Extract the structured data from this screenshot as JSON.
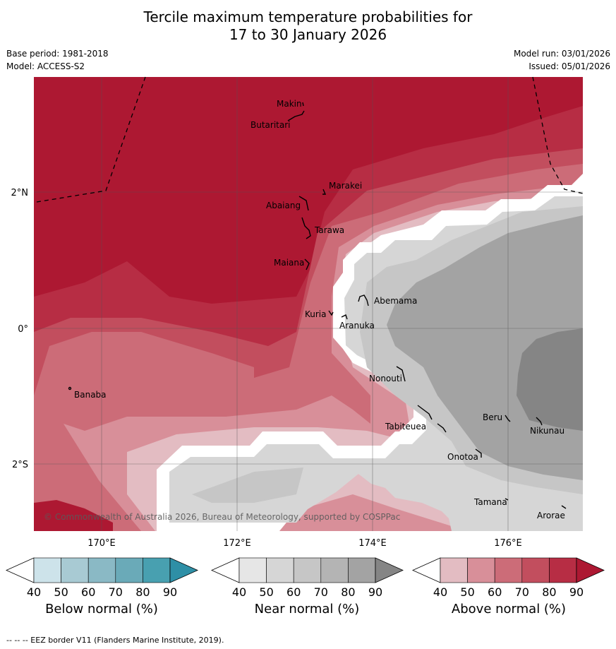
{
  "header": {
    "title_line1": "Tercile maximum temperature probabilities for",
    "title_line2": "17 to 30 January 2026",
    "base_period": "Base period: 1981-2018",
    "model": "Model: ACCESS-S2",
    "model_run": "Model run: 03/01/2026",
    "issued": "Issued: 05/01/2026"
  },
  "map": {
    "lat_labels": [
      "2°N",
      "0°",
      "2°S"
    ],
    "lon_labels": [
      "170°E",
      "172°E",
      "174°E",
      "176°E"
    ],
    "copyright": "© Commonwealth of Australia 2026, Bureau of Meteorology, supported by COSPPac",
    "islands": [
      "Makin",
      "Butaritari",
      "Marakei",
      "Abaiang",
      "Tarawa",
      "Maiana",
      "Abemama",
      "Kuria",
      "Aranuka",
      "Nonouti",
      "Banaba",
      "Tabiteuea",
      "Beru",
      "Nikunau",
      "Onotoa",
      "Tamana",
      "Arorae"
    ]
  },
  "colorbars": [
    {
      "title": "Below normal (%)",
      "ticks": [
        "40",
        "50",
        "60",
        "70",
        "80",
        "90"
      ],
      "colors": [
        "#ffffff",
        "#cde3ea",
        "#a8cad3",
        "#8ab9c5",
        "#6aaab8",
        "#48a0b0",
        "#2e8fa6"
      ]
    },
    {
      "title": "Near normal (%)",
      "ticks": [
        "40",
        "50",
        "60",
        "70",
        "80",
        "90"
      ],
      "colors": [
        "#ffffff",
        "#e6e6e6",
        "#d6d6d6",
        "#c6c6c6",
        "#b4b4b4",
        "#a3a3a3",
        "#858585"
      ]
    },
    {
      "title": "Above normal (%)",
      "ticks": [
        "40",
        "50",
        "60",
        "70",
        "80",
        "90"
      ],
      "colors": [
        "#ffffff",
        "#e3bcc2",
        "#d88f99",
        "#cc6c78",
        "#c24e5e",
        "#b72d44",
        "#ad1832"
      ]
    }
  ],
  "footer": {
    "eez_note": "--  --  -- EEZ border V11 (Flanders Marine Institute, 2019)."
  }
}
